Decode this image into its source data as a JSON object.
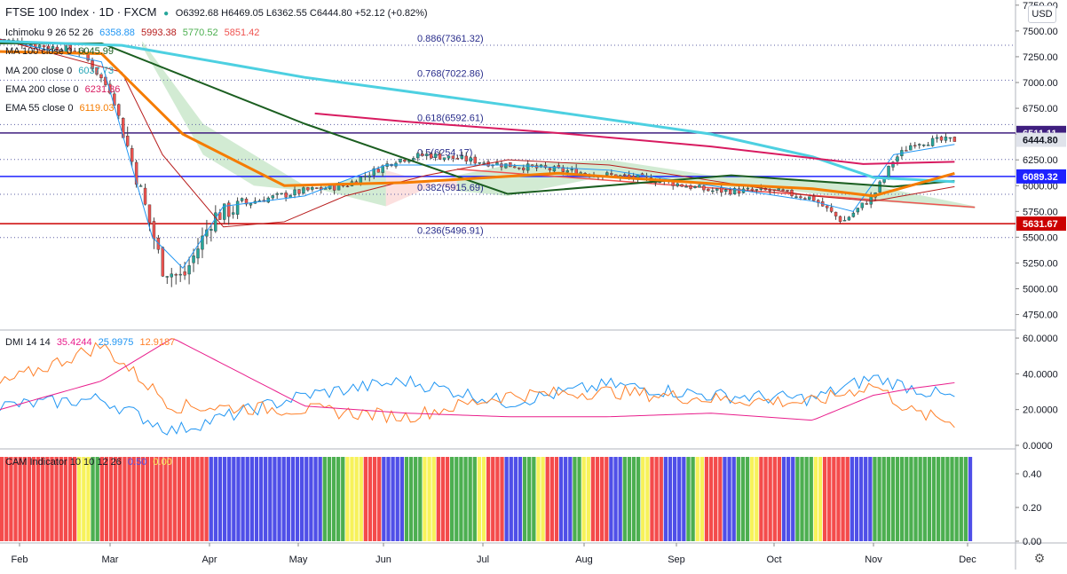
{
  "header": {
    "symbol": "FTSE 100 Index · 1D · FXCM",
    "ohlc": "O6392.68 H6469.05 L6362.55 C6444.80 +52.12 (+0.82%)",
    "currency_button": "USD"
  },
  "legends": {
    "ichimoku": {
      "label": "Ichimoku 9 26 52 26",
      "v1": "6358.88",
      "v2": "5993.38",
      "v3": "5770.52",
      "v4": "5851.42"
    },
    "ma100": {
      "label": "MA 100 close 0",
      "value": "6045.99"
    },
    "ma200": {
      "label": "MA 200 close 0",
      "value": "6037.73"
    },
    "ema200": {
      "label": "EMA 200 close 0",
      "value": "6231.36"
    },
    "ema55": {
      "label": "EMA 55 close 0",
      "value": "6119.03"
    },
    "dmi": {
      "label": "DMI 14 14",
      "v1": "35.4244",
      "v2": "25.9975",
      "v3": "12.9187"
    },
    "cam": {
      "label": "CAM Indicator 10 10 12 26",
      "v1": "0.50",
      "v2": "0.00"
    }
  },
  "colors": {
    "candle_up": "#26a69a",
    "candle_down": "#ef5350",
    "ma100": "#1b5e20",
    "ma200": "#4dd0e1",
    "ema200": "#d81b60",
    "ema55": "#f57c00",
    "tenkan": "#2196f3",
    "kijun": "#b71c1c",
    "resistance": "#3f1f7f",
    "support_blue": "#1e22ff",
    "support_red": "#cc0000",
    "dmi_plus": "#2196f3",
    "dmi_minus": "#ff7f27",
    "adx": "#e91e8c",
    "cam_red": "#f44b4b",
    "cam_blue": "#4f4fe8",
    "cam_yellow": "#f7f25a",
    "cam_green": "#4caf50"
  },
  "chart_data": [
    {
      "type": "candlestick",
      "title": "FTSE 100 Index · 1D · FXCM",
      "x_ticks": [
        "Feb",
        "Mar",
        "Apr",
        "May",
        "Jun",
        "Jul",
        "Aug",
        "Sep",
        "Oct",
        "Nov",
        "Dec"
      ],
      "y_ticks": [
        "7750.00",
        "7500.00",
        "7250.00",
        "7000.00",
        "6750.00",
        "6500.00",
        "6250.00",
        "6000.00",
        "5750.00",
        "5500.00",
        "5250.00",
        "5000.00",
        "4750.00"
      ],
      "ylim": [
        4600,
        7800
      ],
      "last_close": 6444.8,
      "price_labels": [
        "6511.11",
        "6444.80",
        "6089.32",
        "5631.67"
      ],
      "horizontal_levels": [
        6511.11,
        6089.32,
        5631.67
      ],
      "fibonacci": [
        {
          "label": "0.886(7361.32)",
          "value": 7361.32
        },
        {
          "label": "0.768(7022.86)",
          "value": 7022.86
        },
        {
          "label": "0.618(6592.61)",
          "value": 6592.61
        },
        {
          "label": "0.5(6254.17)",
          "value": 6254.17
        },
        {
          "label": "0.382(5915.69)",
          "value": 5915.69
        },
        {
          "label": "0.236(5496.91)",
          "value": 5496.91
        }
      ],
      "series": [
        {
          "name": "MA 100 close 0",
          "x": [
            0,
            0.1,
            0.3,
            0.5,
            0.72,
            0.88,
            0.94
          ],
          "y": [
            7380,
            7380,
            6600,
            5920,
            6100,
            5990,
            6046
          ]
        },
        {
          "name": "MA 200 close 0",
          "x": [
            0,
            0.12,
            0.3,
            0.5,
            0.7,
            0.8,
            0.86,
            0.94
          ],
          "y": [
            7400,
            7360,
            7050,
            6780,
            6500,
            6280,
            6080,
            6038
          ]
        },
        {
          "name": "EMA 200 close 0",
          "x": [
            0.31,
            0.4,
            0.55,
            0.7,
            0.85,
            0.94
          ],
          "y": [
            6700,
            6620,
            6510,
            6380,
            6210,
            6231
          ]
        },
        {
          "name": "EMA 55 close 0",
          "x": [
            0,
            0.1,
            0.18,
            0.28,
            0.4,
            0.55,
            0.7,
            0.8,
            0.86,
            0.94
          ],
          "y": [
            7300,
            7280,
            6500,
            6000,
            6030,
            6120,
            6020,
            5970,
            5900,
            6119
          ]
        }
      ]
    },
    {
      "type": "line",
      "title": "DMI 14 14",
      "y_ticks": [
        "60.0000",
        "40.0000",
        "20.0000",
        "0.0000"
      ],
      "ylim": [
        -2,
        64
      ],
      "series": [
        {
          "name": "DMI+",
          "x": [
            0,
            0.1,
            0.17,
            0.3,
            0.4,
            0.5,
            0.6,
            0.7,
            0.8,
            0.86,
            0.9,
            0.94
          ],
          "y": [
            22,
            26,
            8,
            28,
            36,
            24,
            34,
            28,
            26,
            38,
            32,
            26
          ]
        },
        {
          "name": "DMI-",
          "x": [
            0,
            0.1,
            0.17,
            0.3,
            0.4,
            0.5,
            0.6,
            0.7,
            0.8,
            0.86,
            0.9,
            0.94
          ],
          "y": [
            34,
            56,
            22,
            20,
            16,
            28,
            30,
            26,
            24,
            34,
            18,
            13
          ]
        },
        {
          "name": "ADX",
          "x": [
            0,
            0.1,
            0.17,
            0.3,
            0.4,
            0.5,
            0.6,
            0.7,
            0.8,
            0.86,
            0.9,
            0.94
          ],
          "y": [
            20,
            36,
            60,
            22,
            18,
            16,
            16,
            18,
            14,
            28,
            32,
            35
          ]
        }
      ]
    },
    {
      "type": "bar",
      "title": "CAM Indicator 10 10 12 26",
      "y_ticks": [
        "0.40",
        "0.20",
        "0.00"
      ],
      "ylim": [
        0,
        0.5
      ],
      "value": 0.5
    }
  ]
}
